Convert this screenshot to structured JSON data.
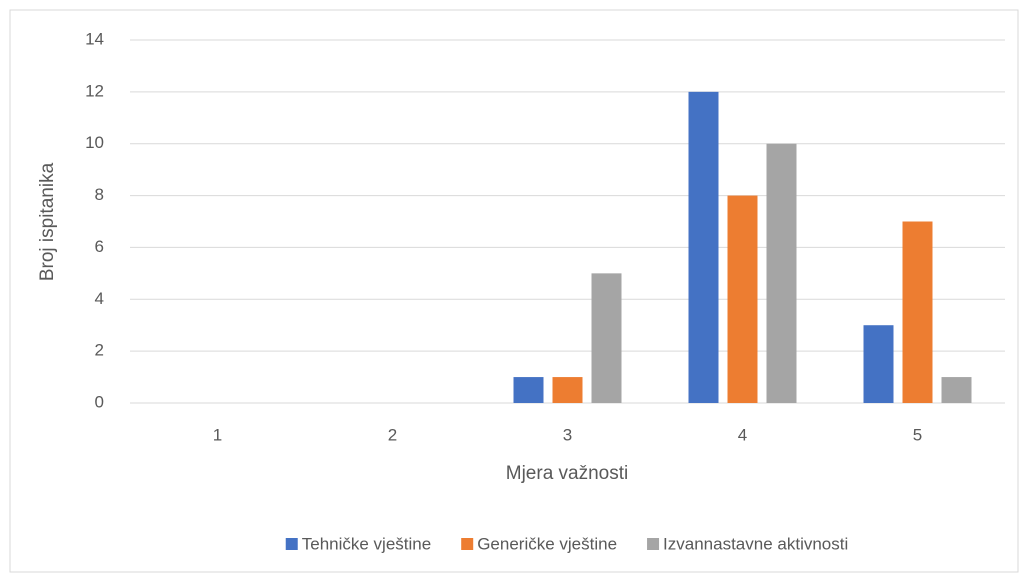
{
  "chart_data": {
    "type": "bar",
    "categories": [
      "1",
      "2",
      "3",
      "4",
      "5"
    ],
    "series": [
      {
        "name": "Tehničke vještine",
        "color": "#4472c4",
        "values": [
          0,
          0,
          1,
          12,
          3
        ]
      },
      {
        "name": "Generičke vještine",
        "color": "#ed7d31",
        "values": [
          0,
          0,
          1,
          8,
          7
        ]
      },
      {
        "name": "Izvannastavne aktivnosti",
        "color": "#a5a5a5",
        "values": [
          0,
          0,
          5,
          10,
          1
        ]
      }
    ],
    "xlabel": "Mjera važnosti",
    "ylabel": "Broj ispitanika",
    "ylim": [
      0,
      14
    ],
    "yticks": [
      0,
      2,
      4,
      6,
      8,
      10,
      12,
      14
    ],
    "grid": true,
    "legend": "bottom"
  }
}
